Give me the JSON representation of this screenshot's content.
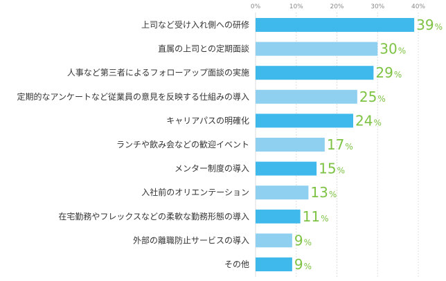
{
  "chart_data": {
    "type": "bar",
    "orientation": "horizontal",
    "categories": [
      "上司など受け入れ側への研修",
      "直属の上司との定期面談",
      "人事など第三者によるフォローアップ面談の実施",
      "定期的なアンケートなど従業員の意見を反映する仕組みの導入",
      "キャリアパスの明確化",
      "ランチや飲み会などの歓迎イベント",
      "メンター制度の導入",
      "入社前のオリエンテーション",
      "在宅勤務やフレックスなどの柔軟な勤務形態の導入",
      "外部の離職防止サービスの導入",
      "その他"
    ],
    "values": [
      39,
      30,
      29,
      25,
      24,
      17,
      15,
      13,
      11,
      9,
      9
    ],
    "value_unit": "%",
    "xlim": [
      0,
      40
    ],
    "xticks": [
      "0%",
      "10%",
      "20%",
      "30%",
      "40%"
    ],
    "grid": true,
    "colors": {
      "bar_dark": "#3fb8ec",
      "bar_light": "#8fd0f1",
      "value_text": "#7dc242",
      "grid": "#dddddd",
      "label_text": "#333333",
      "tick_text": "#888888"
    }
  }
}
